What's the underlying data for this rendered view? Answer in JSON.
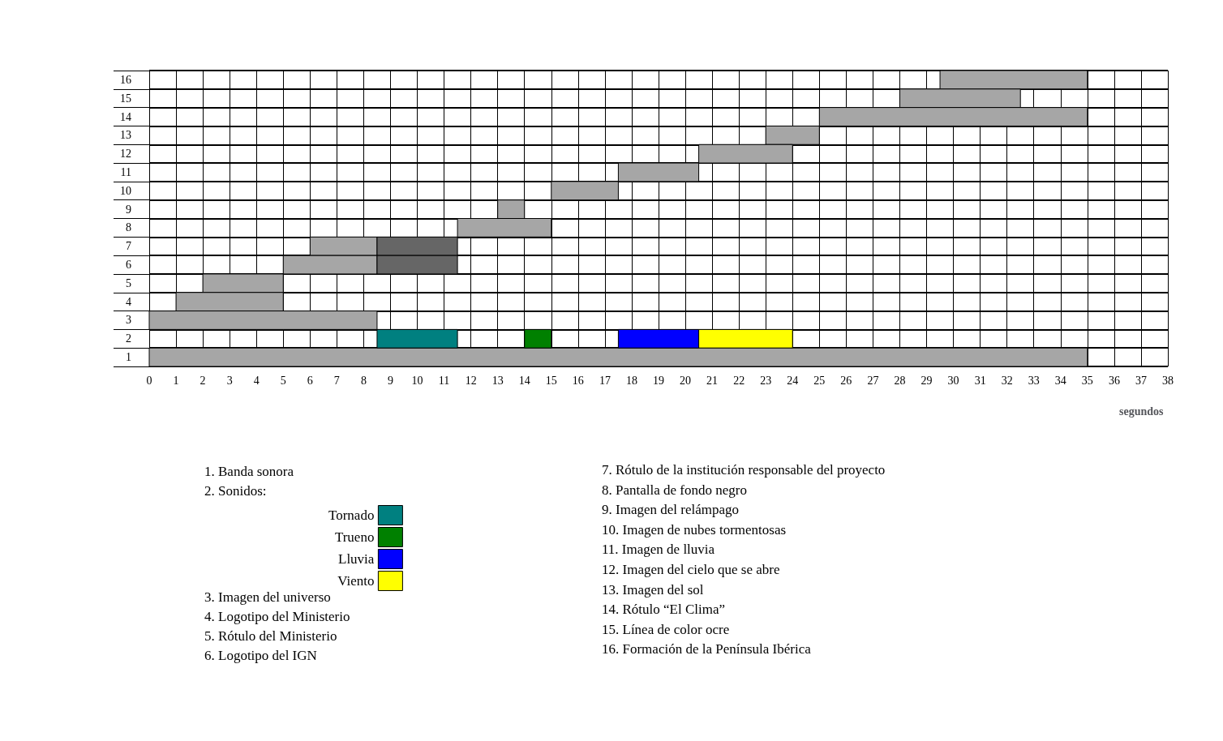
{
  "chart_data": {
    "type": "bar",
    "orientation": "horizontal",
    "xlabel": "segundos",
    "grid": true,
    "legend": "bottom",
    "categories": [
      "16",
      "15",
      "14",
      "13",
      "12",
      "11",
      "10",
      "9",
      "8",
      "7",
      "6",
      "5",
      "4",
      "3",
      "2",
      "1"
    ],
    "xlim": [
      0,
      38
    ],
    "xticks": [
      0,
      1,
      2,
      3,
      4,
      5,
      6,
      7,
      8,
      9,
      10,
      11,
      12,
      13,
      14,
      15,
      16,
      17,
      18,
      19,
      20,
      21,
      22,
      23,
      24,
      25,
      26,
      27,
      28,
      29,
      30,
      31,
      32,
      33,
      34,
      35,
      36,
      37,
      38
    ],
    "series": [
      {
        "color": "#a6a6a6",
        "base": [
          29.5,
          28,
          25,
          23,
          20.5,
          17.5,
          15,
          13,
          11.5,
          6,
          5,
          2,
          1,
          0,
          null,
          0
        ],
        "values": [
          5.5,
          4.5,
          10,
          2,
          3.5,
          3,
          2.5,
          1,
          3.5,
          2.5,
          3.5,
          3,
          4,
          8.5,
          null,
          35
        ]
      },
      {
        "color": "#666666",
        "base": [
          null,
          null,
          null,
          null,
          null,
          null,
          null,
          null,
          null,
          8.5,
          8.5,
          null,
          null,
          null,
          null,
          null
        ],
        "values": [
          null,
          null,
          null,
          null,
          null,
          null,
          null,
          null,
          null,
          3,
          3,
          null,
          null,
          null,
          null,
          null
        ]
      },
      {
        "name": "Tornado",
        "color": "#008080",
        "base": [
          null,
          null,
          null,
          null,
          null,
          null,
          null,
          null,
          null,
          null,
          null,
          null,
          null,
          null,
          8.5,
          null
        ],
        "values": [
          null,
          null,
          null,
          null,
          null,
          null,
          null,
          null,
          null,
          null,
          null,
          null,
          null,
          null,
          3,
          null
        ]
      },
      {
        "name": "Trueno",
        "color": "#008000",
        "base": [
          null,
          null,
          null,
          null,
          null,
          null,
          null,
          null,
          null,
          null,
          null,
          null,
          null,
          null,
          14,
          null
        ],
        "values": [
          null,
          null,
          null,
          null,
          null,
          null,
          null,
          null,
          null,
          null,
          null,
          null,
          null,
          null,
          1,
          null
        ]
      },
      {
        "name": "Lluvia",
        "color": "#0000ff",
        "base": [
          null,
          null,
          null,
          null,
          null,
          null,
          null,
          null,
          null,
          null,
          null,
          null,
          null,
          null,
          17.5,
          null
        ],
        "values": [
          null,
          null,
          null,
          null,
          null,
          null,
          null,
          null,
          null,
          null,
          null,
          null,
          null,
          null,
          3,
          null
        ]
      },
      {
        "name": "Viento",
        "color": "#ffff00",
        "base": [
          null,
          null,
          null,
          null,
          null,
          null,
          null,
          null,
          null,
          null,
          null,
          null,
          null,
          null,
          20.5,
          null
        ],
        "values": [
          null,
          null,
          null,
          null,
          null,
          null,
          null,
          null,
          null,
          null,
          null,
          null,
          null,
          null,
          3.5,
          null
        ]
      }
    ],
    "annotations": [
      "1. Banda sonora",
      "2. Sonidos:",
      "3. Imagen del universo",
      "4. Logotipo del Ministerio",
      "5. Rótulo del Ministerio",
      "6. Logotipo del IGN",
      "7. Rótulo de la institución responsable del proyecto",
      "8. Pantalla de fondo negro",
      "9. Imagen del relámpago",
      "10. Imagen de nubes tormentosas",
      "11. Imagen de lluvia",
      "12. Imagen del cielo que se abre",
      "13. Imagen del sol",
      "14. Rótulo “El Clima”",
      "15. Línea de color ocre",
      "16. Formación de la Península Ibérica"
    ]
  }
}
